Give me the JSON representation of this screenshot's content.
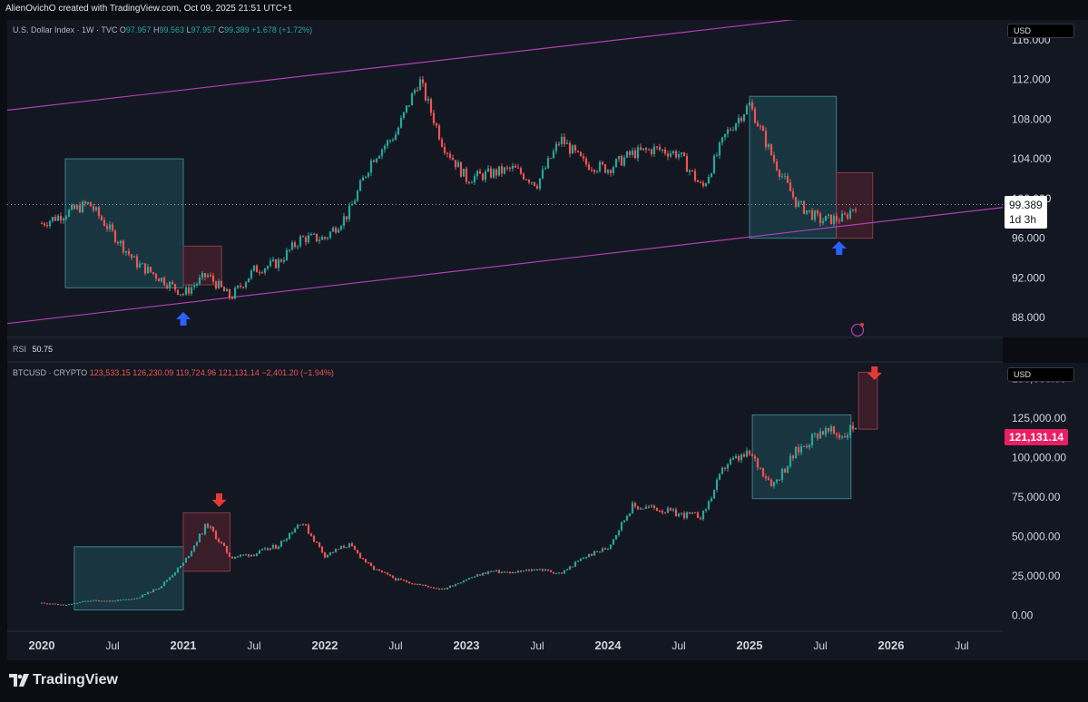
{
  "header": {
    "text": "AlienOvichO created with TradingView.com, Oct 09, 2025 21:51 UTC+1"
  },
  "top_pane": {
    "symbol": "U.S. Dollar Index · 1W · TVC",
    "o_label": "O",
    "o_value": "97.957",
    "h_label": "H",
    "h_value": "99.563",
    "l_label": "L",
    "l_value": "97.957",
    "c_label": "C",
    "c_value": "99.389",
    "change": "+1.678 (+1.72%)",
    "currency": "USD",
    "last_price": "99.389",
    "countdown": "1d 3h",
    "price_ticks": [
      "116.000",
      "112.000",
      "108.000",
      "104.000",
      "100.000",
      "96.000",
      "92.000",
      "88.000"
    ]
  },
  "rsi_pane": {
    "label": "RSI",
    "value": "50.75"
  },
  "bottom_pane": {
    "symbol": "BTCUSD · CRYPTO",
    "o_value": "123,533.15",
    "h_value": "126,230.09",
    "l_value": "119,724.96",
    "c_value": "121,131.14",
    "change": "−2,401.20 (−1.94%)",
    "currency": "USD",
    "last_price": "121,131.14",
    "price_ticks": [
      "150,000.00",
      "125,000.00",
      "100,000.00",
      "75,000.00",
      "50,000.00",
      "25,000.00",
      "0.00"
    ]
  },
  "time_axis": [
    "2020",
    "Jul",
    "2021",
    "Jul",
    "2022",
    "Jul",
    "2023",
    "Jul",
    "2024",
    "Jul",
    "2025",
    "Jul",
    "2026",
    "Jul"
  ],
  "footer": {
    "brand": "TradingView"
  },
  "colors": {
    "up": "#26a69a",
    "down": "#ef5350",
    "channel": "#b03fb5",
    "box_fill": "#1e4f5a",
    "box_red": "#5a2330",
    "arrow_blue": "#2962ff",
    "arrow_red": "#e53935",
    "btc_tag": "#e91e63"
  },
  "chart_data": [
    {
      "type": "candlestick",
      "title": "U.S. Dollar Index · 1W · TVC",
      "x": [
        "2020-01",
        "2020-03",
        "2020-05",
        "2020-07",
        "2020-09",
        "2020-11",
        "2021-01",
        "2021-03",
        "2021-05",
        "2021-07",
        "2021-09",
        "2021-11",
        "2022-01",
        "2022-03",
        "2022-05",
        "2022-07",
        "2022-09",
        "2022-11",
        "2023-01",
        "2023-03",
        "2023-05",
        "2023-07",
        "2023-09",
        "2023-11",
        "2024-01",
        "2024-03",
        "2024-05",
        "2024-07",
        "2024-09",
        "2024-11",
        "2025-01",
        "2025-03",
        "2025-05",
        "2025-07",
        "2025-09",
        "2025-10"
      ],
      "values": [
        97.5,
        98.5,
        99.5,
        96.5,
        93.5,
        92.0,
        90.4,
        92.3,
        90.0,
        92.8,
        93.5,
        96.0,
        96.0,
        98.5,
        104.0,
        106.5,
        112.0,
        105.5,
        102.0,
        102.5,
        103.0,
        101.5,
        106.0,
        103.5,
        103.0,
        104.5,
        105.0,
        104.5,
        101.0,
        106.5,
        109.5,
        104.0,
        99.5,
        97.8,
        98.0,
        99.389
      ],
      "ylim": [
        86,
        118
      ],
      "annotations": [
        "channel upper line",
        "channel lower line",
        "highlight box 2020-03 to 2021-01",
        "highlight box 2021-01 to 2021-04",
        "highlight box 2025-01 to 2025-08",
        "highlight box 2025-08 to 2025-10",
        "up arrow 2021-01",
        "up arrow 2025-08"
      ]
    },
    {
      "type": "candlestick",
      "title": "BTCUSD · CRYPTO",
      "x": [
        "2020-01",
        "2020-03",
        "2020-05",
        "2020-07",
        "2020-09",
        "2020-11",
        "2021-01",
        "2021-03",
        "2021-05",
        "2021-07",
        "2021-09",
        "2021-11",
        "2022-01",
        "2022-03",
        "2022-05",
        "2022-07",
        "2022-09",
        "2022-11",
        "2023-01",
        "2023-03",
        "2023-05",
        "2023-07",
        "2023-09",
        "2023-11",
        "2024-01",
        "2024-03",
        "2024-05",
        "2024-07",
        "2024-09",
        "2024-11",
        "2025-01",
        "2025-03",
        "2025-05",
        "2025-07",
        "2025-09",
        "2025-10"
      ],
      "values": [
        8000,
        6500,
        9500,
        9200,
        10800,
        18000,
        33000,
        58000,
        37000,
        39000,
        44000,
        60000,
        38000,
        45000,
        30000,
        23000,
        19500,
        16500,
        23000,
        28000,
        27000,
        29500,
        26500,
        37000,
        43000,
        69000,
        68000,
        64000,
        63000,
        96000,
        102000,
        83000,
        104000,
        117000,
        114000,
        121131.14
      ],
      "ylim": [
        -10000,
        160000
      ],
      "annotations": [
        "highlight box 2020-04 to 2021-01",
        "highlight box 2021-01 to 2021-04",
        "highlight box 2025-01 to 2025-09",
        "highlight box 2025-09 to 2025-11",
        "down arrow 2021-04",
        "down arrow 2025-11"
      ]
    }
  ]
}
